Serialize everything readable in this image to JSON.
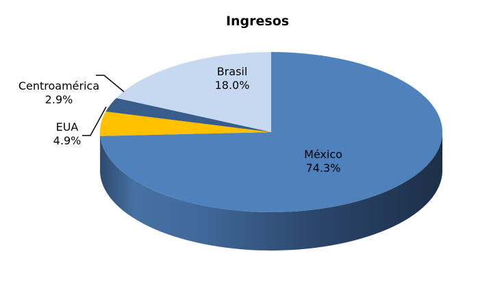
{
  "chart_data": {
    "type": "pie",
    "title": "Ingresos",
    "three_d": true,
    "slices": [
      {
        "name": "México",
        "value": 74.3,
        "value_label": "74.3%",
        "color": "#4F81BD",
        "label_side": "inside"
      },
      {
        "name": "EUA",
        "value": 4.9,
        "value_label": "4.9%",
        "color": "#FFC000",
        "label_side": "outside"
      },
      {
        "name": "Centroamérica",
        "value": 2.9,
        "value_label": "2.9%",
        "color": "#385D8A",
        "label_side": "outside"
      },
      {
        "name": "Brasil",
        "value": 18.0,
        "value_label": "18.0%",
        "color": "#C6D9F1",
        "label_side": "inside"
      }
    ],
    "legend": "none"
  }
}
